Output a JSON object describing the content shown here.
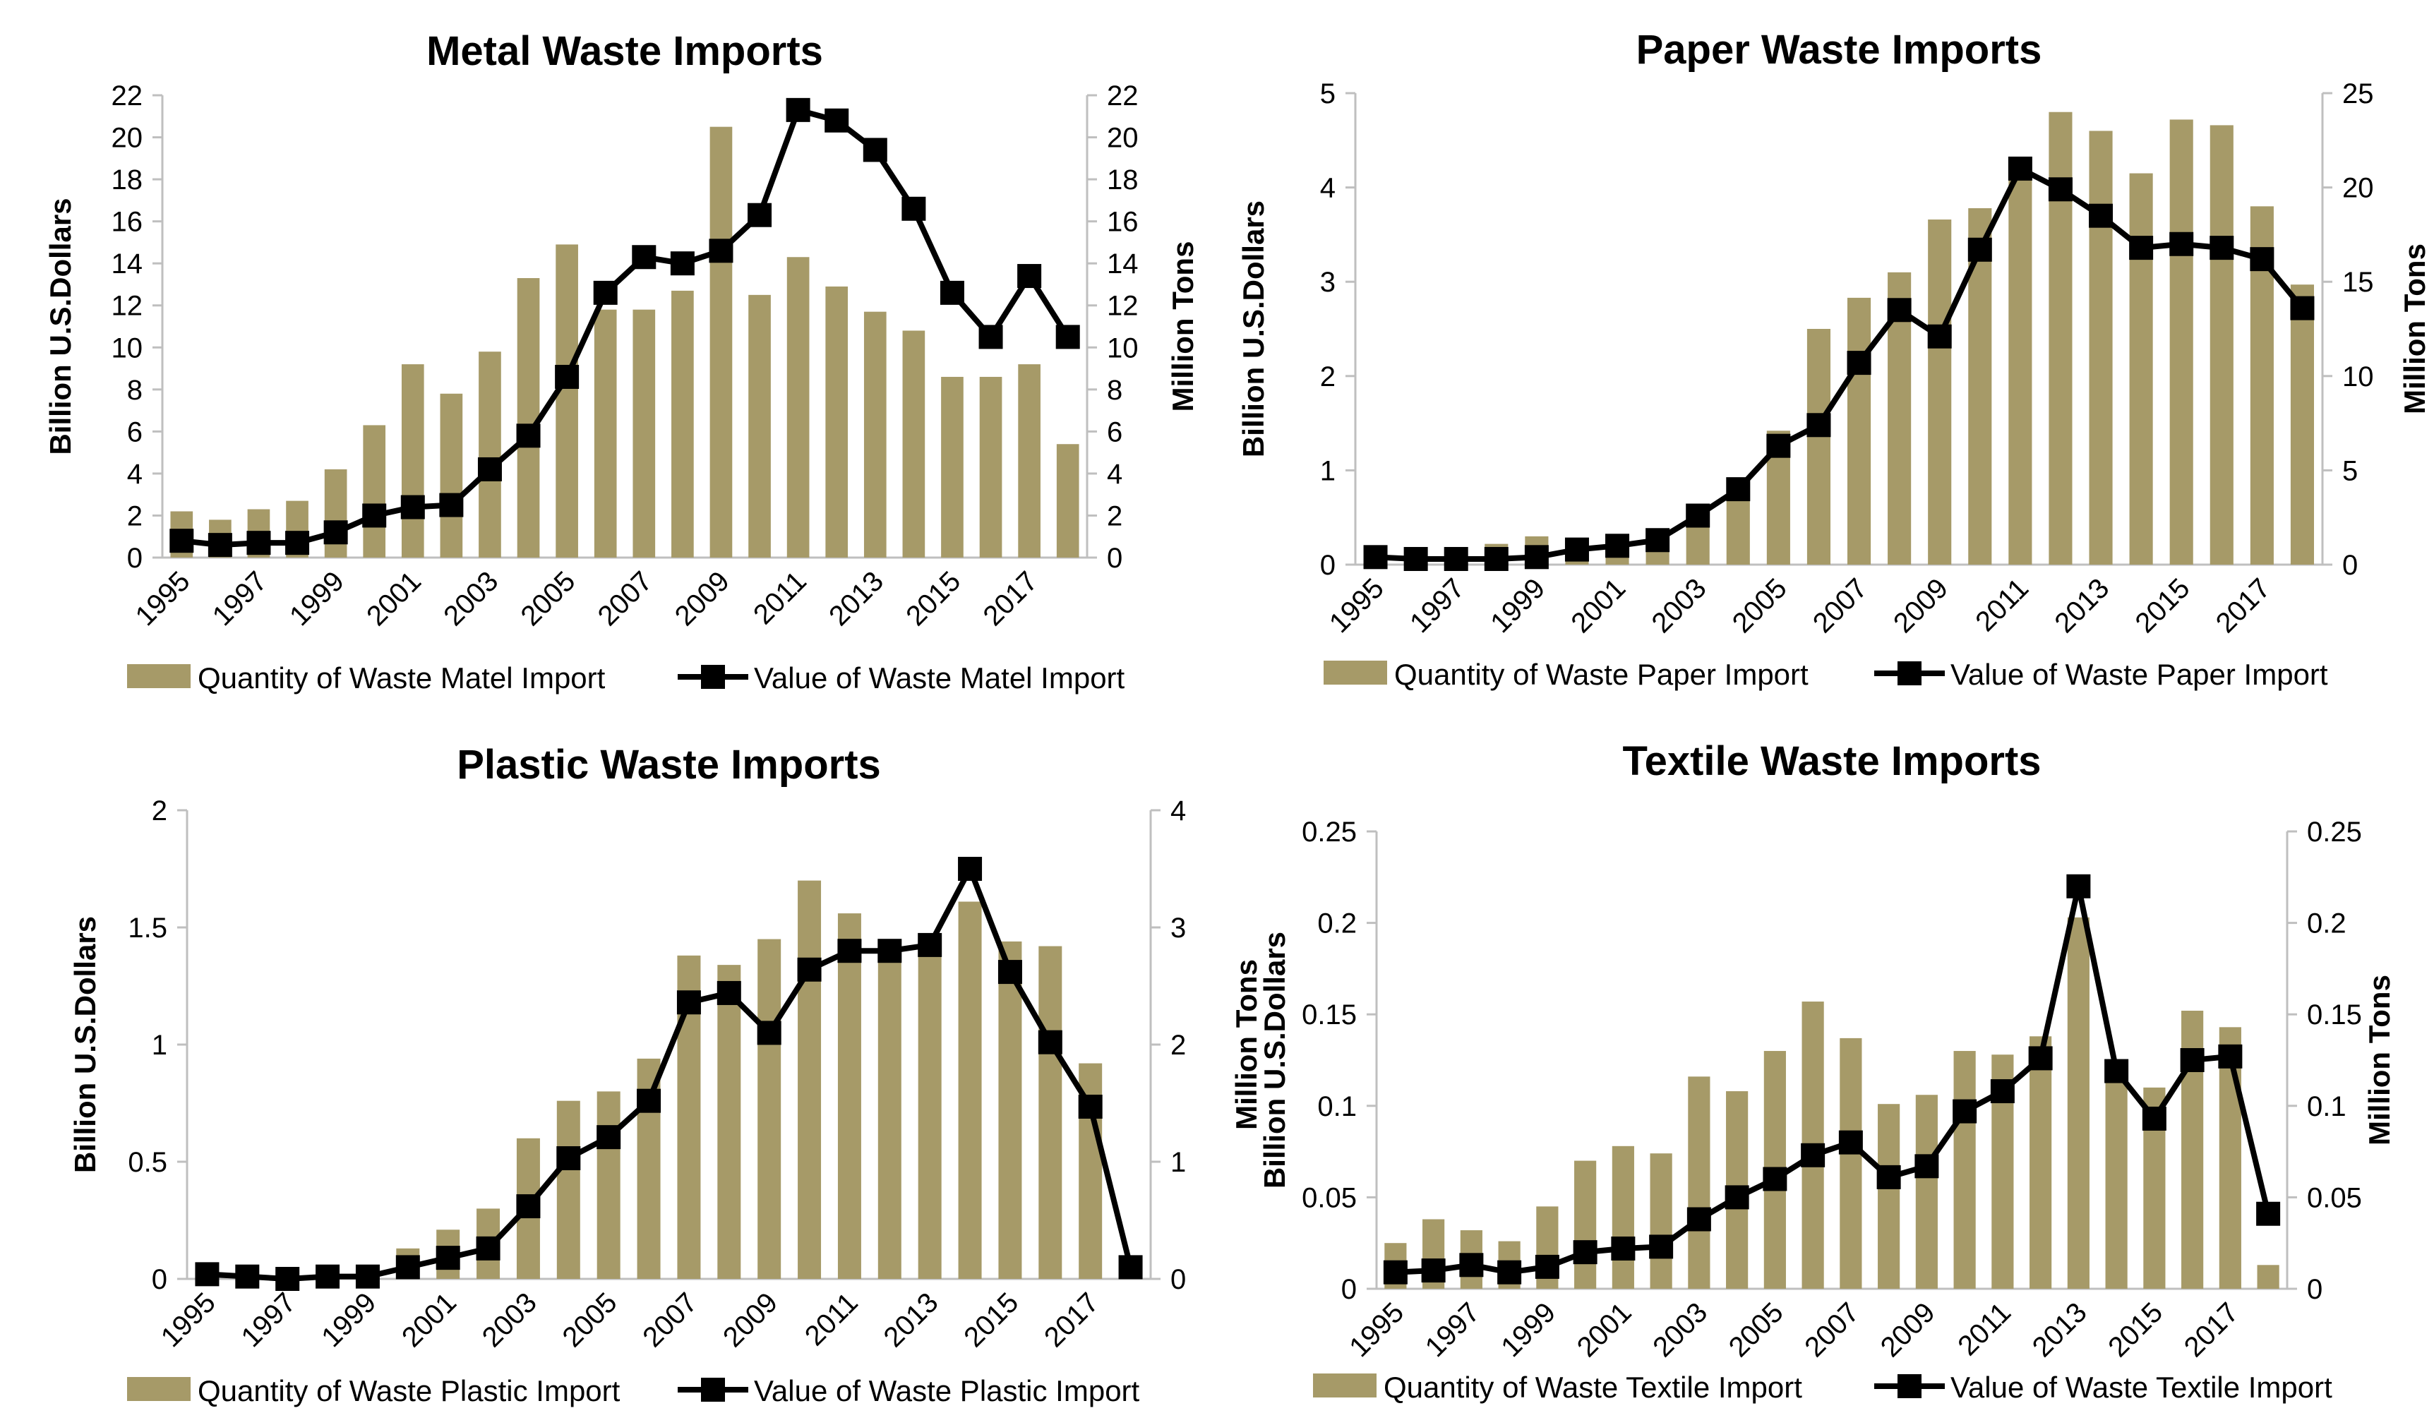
{
  "palette": {
    "bar": "#a69a68",
    "line": "#000000",
    "axis": "#bfbfbf"
  },
  "chart_data": [
    {
      "type": "bar+line",
      "title": "Metal Waste Imports",
      "years": [
        1995,
        1996,
        1997,
        1998,
        1999,
        2000,
        2001,
        2002,
        2003,
        2004,
        2005,
        2006,
        2007,
        2008,
        2009,
        2010,
        2011,
        2012,
        2013,
        2014,
        2015,
        2016,
        2017,
        2018
      ],
      "x_tick_labels": [
        "1995",
        "1997",
        "1999",
        "2001",
        "2003",
        "2005",
        "2007",
        "2009",
        "2011",
        "2013",
        "2015",
        "2017"
      ],
      "ylabel": "Billion U.S.Dollars",
      "y2label": "Million Tons",
      "ylim": [
        0,
        22
      ],
      "y2lim": [
        0,
        22
      ],
      "y_ticks": [
        0,
        2,
        4,
        6,
        8,
        10,
        12,
        14,
        16,
        18,
        20,
        22
      ],
      "y2_ticks": [
        0,
        2,
        4,
        6,
        8,
        10,
        12,
        14,
        16,
        18,
        20,
        22
      ],
      "series": [
        {
          "name": "Quantity of Waste Matel Import",
          "kind": "bar",
          "axis": "right",
          "values": [
            2.2,
            1.8,
            2.3,
            2.7,
            4.2,
            6.3,
            9.2,
            7.8,
            9.8,
            13.3,
            14.9,
            11.8,
            11.8,
            12.7,
            20.5,
            12.5,
            14.3,
            12.9,
            11.7,
            10.8,
            8.6,
            8.6,
            9.2,
            5.4
          ]
        },
        {
          "name": "Value of Waste Matel Import",
          "kind": "line",
          "axis": "left",
          "values": [
            0.8,
            0.6,
            0.7,
            0.7,
            1.2,
            2.0,
            2.4,
            2.5,
            4.2,
            5.8,
            8.6,
            12.6,
            14.3,
            14.0,
            14.6,
            16.3,
            21.3,
            20.8,
            19.4,
            16.6,
            12.6,
            10.5,
            13.4,
            10.5
          ]
        }
      ]
    },
    {
      "type": "bar+line",
      "title": "Paper Waste Imports",
      "years": [
        1995,
        1996,
        1997,
        1998,
        1999,
        2000,
        2001,
        2002,
        2003,
        2004,
        2005,
        2006,
        2007,
        2008,
        2009,
        2010,
        2011,
        2012,
        2013,
        2014,
        2015,
        2016,
        2017,
        2018
      ],
      "x_tick_labels": [
        "1995",
        "1997",
        "1999",
        "2001",
        "2003",
        "2005",
        "2007",
        "2009",
        "2011",
        "2013",
        "2015",
        "2017"
      ],
      "ylabel": "Billion U.S.Dollars",
      "y2label": "Million Tons",
      "ylim": [
        0,
        5
      ],
      "y2lim": [
        0,
        25
      ],
      "y_ticks": [
        0,
        1,
        2,
        3,
        4,
        5
      ],
      "y2_ticks": [
        0,
        5,
        10,
        15,
        20,
        25
      ],
      "series": [
        {
          "name": "Quantity of Waste Paper Import",
          "kind": "bar",
          "axis": "left",
          "values": [
            0.15,
            0.12,
            0.16,
            0.22,
            0.3,
            0.23,
            0.2,
            0.22,
            0.52,
            0.82,
            1.42,
            2.5,
            2.83,
            3.1,
            3.66,
            3.78,
            4.15,
            4.8,
            4.6,
            4.15,
            4.72,
            4.66,
            3.8,
            2.97
          ]
        },
        {
          "name": "Value of Waste Paper Import",
          "kind": "line",
          "axis": "right",
          "values": [
            0.4,
            0.3,
            0.3,
            0.3,
            0.4,
            0.8,
            1.0,
            1.3,
            2.6,
            4.0,
            6.3,
            7.4,
            10.7,
            13.5,
            12.1,
            16.7,
            21.0,
            19.9,
            18.5,
            16.8,
            17.0,
            16.8,
            16.2,
            13.6
          ]
        }
      ]
    },
    {
      "type": "bar+line",
      "title": "Plastic Waste Imports",
      "years": [
        1995,
        1996,
        1997,
        1998,
        1999,
        2000,
        2001,
        2002,
        2003,
        2004,
        2005,
        2006,
        2007,
        2008,
        2009,
        2010,
        2011,
        2012,
        2013,
        2014,
        2015,
        2016,
        2017,
        2018
      ],
      "x_tick_labels": [
        "1995",
        "1997",
        "1999",
        "2001",
        "2003",
        "2005",
        "2007",
        "2009",
        "2011",
        "2013",
        "2015",
        "2017"
      ],
      "ylabel": "Billion U.S.Dollars",
      "y2label": "Million Tons",
      "ylim": [
        0,
        2
      ],
      "y2lim": [
        0,
        4
      ],
      "y_ticks": [
        "0",
        "0.5",
        "1",
        "1.5",
        "2"
      ],
      "y2_ticks": [
        "0",
        "1",
        "2",
        "3",
        "4"
      ],
      "series": [
        {
          "name": "Quantity of Waste Plastic Import",
          "kind": "bar",
          "axis": "left",
          "values": [
            0.02,
            0.01,
            0.01,
            0.01,
            0.02,
            0.13,
            0.21,
            0.3,
            0.6,
            0.76,
            0.8,
            0.94,
            1.38,
            1.34,
            1.45,
            1.7,
            1.56,
            1.4,
            1.38,
            1.61,
            1.44,
            1.42,
            0.92,
            0.04
          ]
        },
        {
          "name": "Value of Waste Plastic Import",
          "kind": "line",
          "axis": "right",
          "values": [
            0.04,
            0.02,
            0.0,
            0.02,
            0.02,
            0.1,
            0.18,
            0.26,
            0.62,
            1.03,
            1.21,
            1.52,
            2.36,
            2.44,
            2.1,
            2.64,
            2.8,
            2.8,
            2.85,
            3.5,
            2.62,
            2.02,
            1.47,
            0.1
          ]
        }
      ]
    },
    {
      "type": "bar+line",
      "title": "Textile Waste Imports",
      "years": [
        1995,
        1996,
        1997,
        1998,
        1999,
        2000,
        2001,
        2002,
        2003,
        2004,
        2005,
        2006,
        2007,
        2008,
        2009,
        2010,
        2011,
        2012,
        2013,
        2014,
        2015,
        2016,
        2017,
        2018
      ],
      "x_tick_labels": [
        "1995",
        "1997",
        "1999",
        "2001",
        "2003",
        "2005",
        "2007",
        "2009",
        "2011",
        "2013",
        "2015",
        "2017"
      ],
      "ylabel": "Billion U.S.Dollars",
      "y2label": "Million Tons",
      "ylim": [
        0,
        0.25
      ],
      "y2lim": [
        0,
        0.25
      ],
      "y_ticks": [
        "0",
        "0.05",
        "0.1",
        "0.15",
        "0.2",
        "0.25"
      ],
      "y2_ticks": [
        "0",
        "0.05",
        "0.1",
        "0.15",
        "0.2",
        "0.25"
      ],
      "series": [
        {
          "name": "Quantity of Waste Textile Import",
          "kind": "bar",
          "axis": "left",
          "values": [
            0.025,
            0.038,
            0.032,
            0.026,
            0.045,
            0.07,
            0.078,
            0.074,
            0.116,
            0.108,
            0.13,
            0.157,
            0.137,
            0.101,
            0.106,
            0.13,
            0.128,
            0.138,
            0.203,
            0.117,
            0.11,
            0.152,
            0.143,
            0.013
          ]
        },
        {
          "name": "Value of Waste Textile Import",
          "kind": "line",
          "axis": "right",
          "values": [
            0.009,
            0.01,
            0.013,
            0.009,
            0.012,
            0.02,
            0.022,
            0.023,
            0.038,
            0.05,
            0.06,
            0.073,
            0.08,
            0.061,
            0.067,
            0.097,
            0.108,
            0.126,
            0.22,
            0.119,
            0.093,
            0.125,
            0.127,
            0.041
          ]
        }
      ]
    }
  ]
}
